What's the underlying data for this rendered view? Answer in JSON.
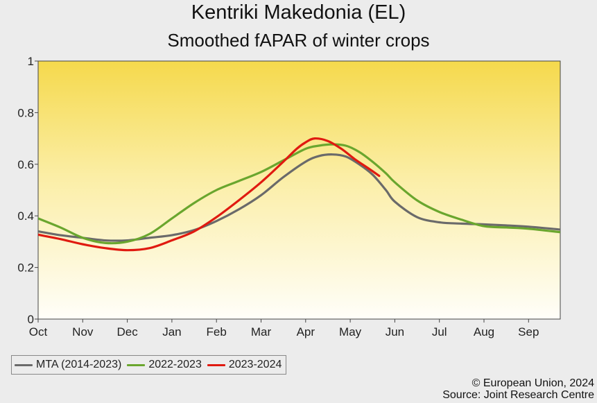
{
  "title": "Kentriki Makedonia (EL)",
  "subtitle": "Smoothed fAPAR of winter crops",
  "credits": {
    "line1": "© European Union, 2024",
    "line2": "Source: Joint Research Centre"
  },
  "chart_data": {
    "type": "line",
    "x_tick_labels": [
      "Oct",
      "Nov",
      "Dec",
      "Jan",
      "Feb",
      "Mar",
      "Apr",
      "May",
      "Jun",
      "Jul",
      "Aug",
      "Sep"
    ],
    "y_ticks": [
      0,
      0.2,
      0.4,
      0.6,
      0.8,
      1
    ],
    "ylim": [
      0,
      1
    ],
    "xlim": [
      0,
      11.7
    ],
    "background": "yellow gradient (top) to white (bottom)",
    "legend_position": "bottom-left",
    "series": [
      {
        "name": "MTA (2014-2023)",
        "color": "#6a6a6a",
        "x": [
          0,
          0.5,
          1,
          1.5,
          2,
          2.5,
          3,
          3.5,
          4,
          4.5,
          5,
          5.5,
          6,
          6.3,
          6.6,
          6.9,
          7.2,
          7.5,
          7.8,
          8,
          8.5,
          9,
          9.5,
          10,
          10.5,
          11,
          11.7
        ],
        "y": [
          0.34,
          0.325,
          0.315,
          0.305,
          0.305,
          0.315,
          0.325,
          0.345,
          0.38,
          0.425,
          0.48,
          0.55,
          0.61,
          0.632,
          0.638,
          0.63,
          0.6,
          0.56,
          0.5,
          0.455,
          0.395,
          0.375,
          0.37,
          0.367,
          0.363,
          0.358,
          0.347
        ]
      },
      {
        "name": "2022-2023",
        "color": "#6aa62e",
        "x": [
          0,
          0.5,
          1,
          1.5,
          2,
          2.5,
          3,
          3.5,
          4,
          4.5,
          5,
          5.5,
          6,
          6.3,
          6.6,
          6.9,
          7.2,
          7.5,
          7.8,
          8,
          8.5,
          9,
          9.5,
          10,
          10.5,
          11,
          11.7
        ],
        "y": [
          0.39,
          0.355,
          0.315,
          0.295,
          0.3,
          0.33,
          0.39,
          0.45,
          0.5,
          0.535,
          0.57,
          0.615,
          0.66,
          0.672,
          0.677,
          0.672,
          0.648,
          0.61,
          0.565,
          0.53,
          0.46,
          0.415,
          0.385,
          0.36,
          0.355,
          0.35,
          0.337
        ]
      },
      {
        "name": "2023-2024",
        "color": "#e01a10",
        "x": [
          0,
          0.5,
          1,
          1.5,
          2,
          2.5,
          3,
          3.5,
          4,
          4.5,
          5,
          5.5,
          5.8,
          6,
          6.2,
          6.5,
          6.8,
          7.1,
          7.4,
          7.65
        ],
        "y": [
          0.327,
          0.31,
          0.29,
          0.275,
          0.267,
          0.275,
          0.305,
          0.34,
          0.395,
          0.46,
          0.53,
          0.61,
          0.66,
          0.685,
          0.7,
          0.69,
          0.66,
          0.62,
          0.585,
          0.555
        ]
      }
    ]
  }
}
